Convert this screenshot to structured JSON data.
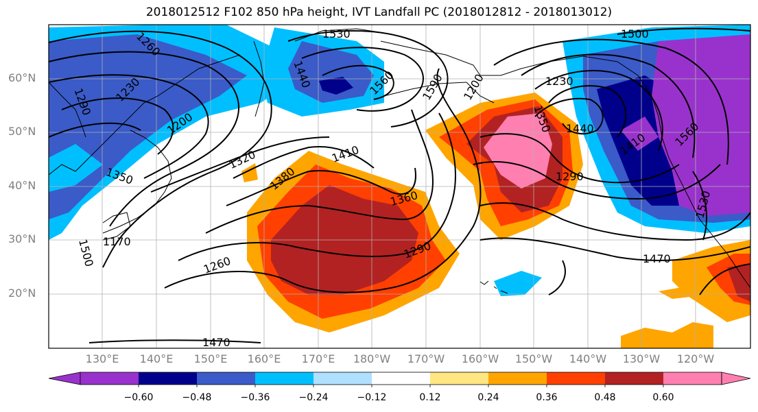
{
  "title": "2018012512 F102 850 hPa height, IVT Landfall PC (2018012812 - 2018013012)",
  "lat_labels": [
    "60°N",
    "50°N",
    "40°N",
    "30°N",
    "20°N"
  ],
  "lon_labels": [
    "130°E",
    "140°E",
    "150°E",
    "160°E",
    "170°E",
    "180°W",
    "170°W",
    "160°W",
    "150°W",
    "140°W",
    "130°W",
    "120°W"
  ],
  "colorbar": {
    "labels": [
      "−0.60",
      "−0.48",
      "−0.36",
      "−0.24",
      "−0.12",
      "0.12",
      "0.24",
      "0.36",
      "0.48",
      "0.60"
    ],
    "colors": [
      "#9932cc",
      "#00008b",
      "#3a5bc8",
      "#00bfff",
      "#b0e0ff",
      "#ffffff",
      "#ffe680",
      "#ffa500",
      "#ff4000",
      "#b22222",
      "#ff80b0"
    ]
  },
  "contour_labels": [
    "1530",
    "1260",
    "1230",
    "1290",
    "1200",
    "1350",
    "1170",
    "1500",
    "1470",
    "1440",
    "1560",
    "1590",
    "1320",
    "1380",
    "1410",
    "1360",
    "1290",
    "1260",
    "1200",
    "1230",
    "1350",
    "1440",
    "1410",
    "1290",
    "1560",
    "1500",
    "1530",
    "1470"
  ]
}
